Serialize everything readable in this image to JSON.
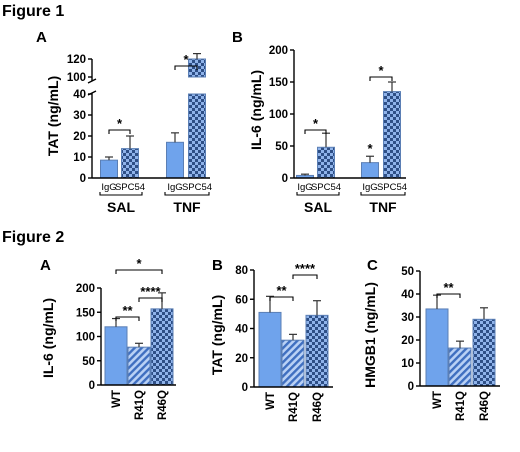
{
  "colors": {
    "blue": "#6fa3ec",
    "pattern": "#5b7fb5",
    "errorbar": "#000000"
  },
  "figure1": {
    "title": "Figure 1"
  },
  "figure2": {
    "title": "Figure 2"
  },
  "chart_data": [
    {
      "id": "f1a",
      "figure": "Figure 1",
      "panel": "A",
      "type": "bar",
      "ylabel": "TAT (ng/mL)",
      "ylim_lower": [
        0,
        40
      ],
      "ylim_upper": [
        100,
        120
      ],
      "axis_break": true,
      "ticks_lower": [
        "0",
        "10",
        "20",
        "30",
        "40"
      ],
      "ticks_upper": [
        "100",
        "120"
      ],
      "categories": [
        "IgG",
        "SPC54",
        "IgG",
        "SPC54"
      ],
      "groups": [
        "SAL",
        "TNF"
      ],
      "values": [
        8.5,
        14,
        17,
        120
      ],
      "errors": [
        1.5,
        6,
        4.5,
        6
      ],
      "patterns": [
        "solid",
        "check",
        "solid",
        "check"
      ],
      "sig": [
        {
          "from": 0,
          "to": 1,
          "label": "*"
        },
        {
          "from": 2,
          "to": 3,
          "label": "*"
        }
      ]
    },
    {
      "id": "f1b",
      "figure": "Figure 1",
      "panel": "B",
      "type": "bar",
      "ylabel": "IL-6 (ng/mL)",
      "ylim": [
        0,
        200
      ],
      "ticks": [
        "0",
        "50",
        "100",
        "150",
        "200"
      ],
      "categories": [
        "IgG",
        "SPC54",
        "IgG",
        "SPC54"
      ],
      "groups": [
        "SAL",
        "TNF"
      ],
      "values": [
        4,
        48,
        24,
        135
      ],
      "errors": [
        2,
        22,
        10,
        15
      ],
      "patterns": [
        "solid",
        "check",
        "solid",
        "check"
      ],
      "sig": [
        {
          "from": 0,
          "to": 1,
          "label": "*"
        },
        {
          "from": 2,
          "to": 3,
          "label": "*"
        }
      ],
      "marks": [
        {
          "bar": 2,
          "label": "*"
        }
      ]
    },
    {
      "id": "f2a",
      "figure": "Figure 2",
      "panel": "A",
      "type": "bar",
      "ylabel": "IL-6 (ng/mL)",
      "ylim": [
        0,
        200
      ],
      "ticks": [
        "0",
        "50",
        "100",
        "150",
        "200"
      ],
      "categories": [
        "WT",
        "R41Q",
        "R46Q"
      ],
      "values": [
        120,
        78,
        157
      ],
      "errors": [
        17,
        8,
        33
      ],
      "patterns": [
        "solid",
        "hatch",
        "check"
      ],
      "sig": [
        {
          "from": 0,
          "to": 1,
          "label": "**"
        },
        {
          "from": 1,
          "to": 2,
          "label": "****"
        },
        {
          "from": 0,
          "to": 2,
          "label": "*"
        }
      ]
    },
    {
      "id": "f2b",
      "figure": "Figure 2",
      "panel": "B",
      "type": "bar",
      "ylabel": "TAT (ng/mL)",
      "ylim": [
        0,
        80
      ],
      "ticks": [
        "0",
        "20",
        "40",
        "60",
        "80"
      ],
      "categories": [
        "WT",
        "R41Q",
        "R46Q"
      ],
      "values": [
        51,
        32,
        49
      ],
      "errors": [
        11,
        4,
        10
      ],
      "patterns": [
        "solid",
        "hatch",
        "check"
      ],
      "sig": [
        {
          "from": 0,
          "to": 1,
          "label": "**"
        },
        {
          "from": 1,
          "to": 2,
          "label": "****"
        }
      ]
    },
    {
      "id": "f2c",
      "figure": "Figure 2",
      "panel": "C",
      "type": "bar",
      "ylabel": "HMGB1 (ng/mL)",
      "ylim": [
        0,
        50
      ],
      "ticks": [
        "0",
        "10",
        "20",
        "30",
        "40",
        "50"
      ],
      "categories": [
        "WT",
        "R41Q",
        "R46Q"
      ],
      "values": [
        33.5,
        16.5,
        29
      ],
      "errors": [
        6,
        3,
        5
      ],
      "patterns": [
        "solid",
        "hatch",
        "check"
      ],
      "sig": [
        {
          "from": 0,
          "to": 1,
          "label": "**"
        }
      ]
    }
  ]
}
